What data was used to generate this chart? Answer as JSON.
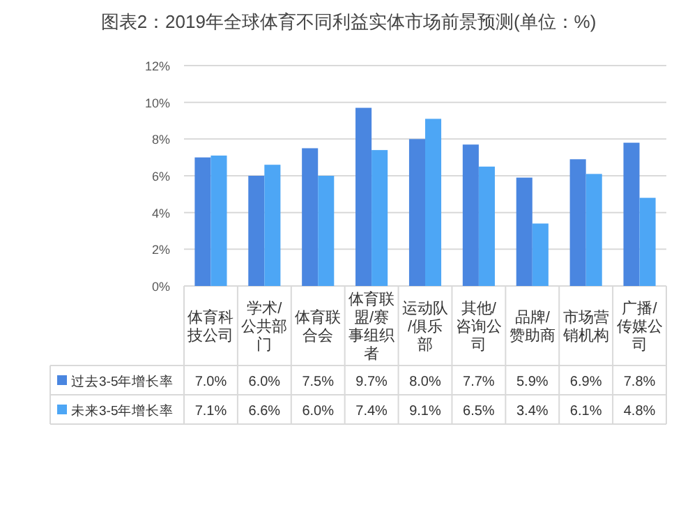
{
  "chart_data": {
    "type": "bar",
    "title": "图表2：2019年全球体育不同利益实体市场前景预测(单位：%)",
    "categories": [
      "体育科技公司",
      "学术/公共部门",
      "体育联合会",
      "体育联盟/赛事组织者",
      "运动队/俱乐部",
      "其他/咨询公司",
      "品牌/赞助商",
      "市场营销机构",
      "广播/传媒公司"
    ],
    "series": [
      {
        "name": "过去3-5年增长率",
        "color": "#4a86e0",
        "values": [
          7.0,
          6.0,
          7.5,
          9.7,
          8.0,
          7.7,
          5.9,
          6.9,
          7.8
        ],
        "value_labels": [
          "7.0%",
          "6.0%",
          "7.5%",
          "9.7%",
          "8.0%",
          "7.7%",
          "5.9%",
          "6.9%",
          "7.8%"
        ]
      },
      {
        "name": "未来3-5年增长率",
        "color": "#4da6f5",
        "values": [
          7.1,
          6.6,
          6.0,
          7.4,
          9.1,
          6.5,
          3.4,
          6.1,
          4.8
        ],
        "value_labels": [
          "7.1%",
          "6.6%",
          "6.0%",
          "7.4%",
          "9.1%",
          "6.5%",
          "3.4%",
          "6.1%",
          "4.8%"
        ]
      }
    ],
    "ylim": [
      0,
      12
    ],
    "yticks": [
      {
        "value": 0,
        "label": "0%"
      },
      {
        "value": 2,
        "label": "2%"
      },
      {
        "value": 4,
        "label": "4%"
      },
      {
        "value": 6,
        "label": "6%"
      },
      {
        "value": 8,
        "label": "8%"
      },
      {
        "value": 10,
        "label": "10%"
      },
      {
        "value": 12,
        "label": "12%"
      }
    ],
    "grid": "y",
    "legend": "bottom left"
  }
}
